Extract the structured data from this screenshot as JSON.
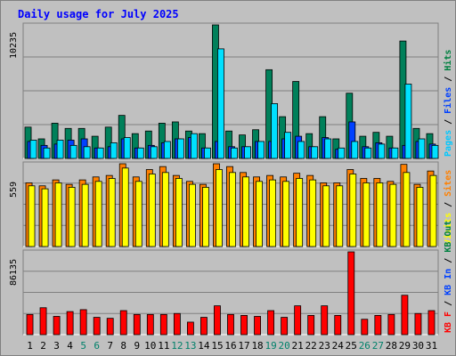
{
  "chart_data": [
    {
      "type": "bar",
      "title": "Daily usage for July 2025",
      "panel": "hits-files-pages",
      "ymax_label": "10235",
      "ymax": 10235,
      "right_labels": [
        {
          "text": "Pages",
          "color": "#00c8ff"
        },
        {
          "text": "Files",
          "color": "#0040ff"
        },
        {
          "text": "Hits",
          "color": "#008040"
        }
      ],
      "series": [
        {
          "name": "Hits",
          "color": "#00805a",
          "values": [
            2400,
            1500,
            2700,
            2300,
            2300,
            1700,
            2400,
            3300,
            1900,
            2100,
            2700,
            2800,
            2100,
            1900,
            10235,
            2100,
            1800,
            2200,
            6800,
            3200,
            5900,
            1900,
            3200,
            1500,
            5000,
            1700,
            2000,
            1700,
            9000,
            2300,
            1900
          ]
        },
        {
          "name": "Files",
          "color": "#0040ff",
          "values": [
            1300,
            1000,
            1100,
            1400,
            1500,
            800,
            900,
            1500,
            800,
            1000,
            1200,
            1500,
            1600,
            800,
            1300,
            900,
            900,
            1300,
            1300,
            1500,
            1700,
            900,
            1600,
            700,
            2800,
            900,
            1200,
            800,
            1000,
            1300,
            1100
          ]
        },
        {
          "name": "Pages",
          "color": "#00e0ff",
          "values": [
            1400,
            800,
            1400,
            1000,
            900,
            800,
            1200,
            1600,
            800,
            900,
            1300,
            1500,
            1900,
            800,
            8400,
            800,
            900,
            1300,
            4200,
            2000,
            1300,
            900,
            1500,
            800,
            1300,
            800,
            1100,
            800,
            5700,
            1500,
            1000
          ]
        }
      ]
    },
    {
      "type": "bar",
      "panel": "visits-sites",
      "ymax_label": "559",
      "ymax": 559,
      "right_labels": [
        {
          "text": "Visits",
          "color": "#ffff00"
        },
        {
          "text": "Sites",
          "color": "#ff8000"
        }
      ],
      "series": [
        {
          "name": "Sites",
          "color": "#ff8000",
          "values": [
            430,
            410,
            450,
            420,
            450,
            470,
            480,
            559,
            470,
            520,
            540,
            480,
            440,
            420,
            559,
            540,
            500,
            470,
            480,
            470,
            495,
            480,
            430,
            430,
            520,
            460,
            460,
            440,
            555,
            420,
            510
          ]
        },
        {
          "name": "Visits",
          "color": "#ffff00",
          "values": [
            410,
            390,
            430,
            400,
            420,
            440,
            460,
            530,
            440,
            490,
            500,
            460,
            420,
            400,
            520,
            500,
            470,
            440,
            450,
            440,
            460,
            450,
            410,
            410,
            490,
            430,
            430,
            420,
            500,
            400,
            480
          ]
        }
      ]
    },
    {
      "type": "bar",
      "panel": "kbytes",
      "ymax_label": "86135",
      "ymax": 86135,
      "right_labels": [
        {
          "text": "KB F",
          "color": "#ff0000"
        },
        {
          "text": "KB In",
          "color": "#0040ff"
        },
        {
          "text": "KB Out",
          "color": "#008040"
        }
      ],
      "series": [
        {
          "name": "KB F",
          "color": "#ff0000",
          "values": [
            21000,
            28000,
            19000,
            24000,
            26000,
            18000,
            17000,
            25000,
            21000,
            21000,
            21000,
            22000,
            13000,
            18000,
            30000,
            21000,
            20000,
            19000,
            25000,
            18000,
            30000,
            20000,
            30000,
            20000,
            86135,
            16000,
            20000,
            21000,
            41000,
            22000,
            25000
          ]
        }
      ]
    }
  ],
  "x_labels": [
    {
      "text": "1",
      "color": "#000000"
    },
    {
      "text": "2",
      "color": "#000000"
    },
    {
      "text": "3",
      "color": "#000000"
    },
    {
      "text": "4",
      "color": "#000000"
    },
    {
      "text": "5",
      "color": "#00806a"
    },
    {
      "text": "6",
      "color": "#00806a"
    },
    {
      "text": "7",
      "color": "#000000"
    },
    {
      "text": "8",
      "color": "#000000"
    },
    {
      "text": "9",
      "color": "#000000"
    },
    {
      "text": "10",
      "color": "#000000"
    },
    {
      "text": "11",
      "color": "#000000"
    },
    {
      "text": "12",
      "color": "#00806a"
    },
    {
      "text": "13",
      "color": "#00806a"
    },
    {
      "text": "14",
      "color": "#000000"
    },
    {
      "text": "15",
      "color": "#000000"
    },
    {
      "text": "16",
      "color": "#000000"
    },
    {
      "text": "17",
      "color": "#000000"
    },
    {
      "text": "18",
      "color": "#000000"
    },
    {
      "text": "19",
      "color": "#00806a"
    },
    {
      "text": "20",
      "color": "#00806a"
    },
    {
      "text": "21",
      "color": "#000000"
    },
    {
      "text": "22",
      "color": "#000000"
    },
    {
      "text": "23",
      "color": "#000000"
    },
    {
      "text": "24",
      "color": "#000000"
    },
    {
      "text": "25",
      "color": "#000000"
    },
    {
      "text": "26",
      "color": "#00806a"
    },
    {
      "text": "27",
      "color": "#00806a"
    },
    {
      "text": "28",
      "color": "#000000"
    },
    {
      "text": "29",
      "color": "#000000"
    },
    {
      "text": "30",
      "color": "#000000"
    },
    {
      "text": "31",
      "color": "#000000"
    }
  ],
  "colors": {
    "title": "#0000ff",
    "background": "#c0c0c0",
    "plot_area": "#c0c0c0",
    "gridline": "#808080",
    "bar_outline": "#000000"
  }
}
